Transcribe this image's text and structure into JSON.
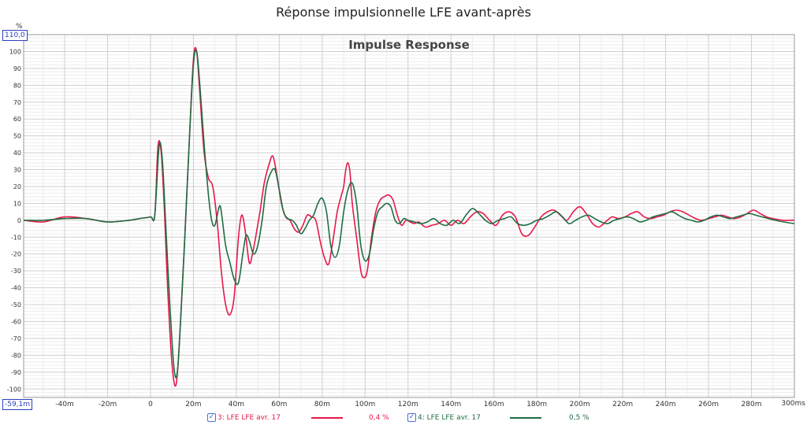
{
  "page_title": "Réponse impulsionnelle LFE avant-après",
  "chart_data": {
    "type": "line",
    "title": "Impulse Response",
    "ylabel": "%",
    "xlabel": "",
    "x_unit": "ms",
    "y_max_box": "110,0",
    "x_min_box": "-59,1m",
    "ylim": [
      -105,
      110
    ],
    "xlim": [
      -59.1,
      300
    ],
    "grid": true,
    "y_ticks": [
      100,
      90,
      80,
      70,
      60,
      50,
      40,
      30,
      20,
      10,
      0,
      -10,
      -20,
      -30,
      -40,
      -50,
      -60,
      -70,
      -80,
      -90,
      -100
    ],
    "x_ticks": [
      {
        "v": -40,
        "label": "-40m"
      },
      {
        "v": -20,
        "label": "-20m"
      },
      {
        "v": 0,
        "label": "0"
      },
      {
        "v": 20,
        "label": "20m"
      },
      {
        "v": 40,
        "label": "40m"
      },
      {
        "v": 60,
        "label": "60m"
      },
      {
        "v": 80,
        "label": "80m"
      },
      {
        "v": 100,
        "label": "100m"
      },
      {
        "v": 120,
        "label": "120m"
      },
      {
        "v": 140,
        "label": "140m"
      },
      {
        "v": 160,
        "label": "160m"
      },
      {
        "v": 180,
        "label": "180m"
      },
      {
        "v": 200,
        "label": "200m"
      },
      {
        "v": 220,
        "label": "220m"
      },
      {
        "v": 240,
        "label": "240m"
      },
      {
        "v": 260,
        "label": "260m"
      },
      {
        "v": 280,
        "label": "280m"
      }
    ],
    "x_end_label": "300ms",
    "series": [
      {
        "name": "3: LFE LFE avr. 17",
        "legend_value": "0,4 %",
        "color": "#e8174a",
        "points": [
          [
            -59,
            0
          ],
          [
            -50,
            -1
          ],
          [
            -40,
            2
          ],
          [
            -30,
            1
          ],
          [
            -20,
            -1
          ],
          [
            -10,
            0
          ],
          [
            -5,
            1
          ],
          [
            0,
            2
          ],
          [
            2,
            3
          ],
          [
            3.5,
            44
          ],
          [
            5,
            40
          ],
          [
            6.5,
            5
          ],
          [
            8,
            -40
          ],
          [
            10,
            -85
          ],
          [
            12,
            -97
          ],
          [
            14,
            -60
          ],
          [
            16,
            -10
          ],
          [
            18,
            45
          ],
          [
            20,
            95
          ],
          [
            21.5,
            100
          ],
          [
            23,
            75
          ],
          [
            25,
            40
          ],
          [
            27,
            25
          ],
          [
            29,
            20
          ],
          [
            31,
            0
          ],
          [
            33,
            -30
          ],
          [
            35,
            -50
          ],
          [
            37,
            -56
          ],
          [
            39,
            -45
          ],
          [
            41,
            -10
          ],
          [
            42.5,
            3
          ],
          [
            44,
            -5
          ],
          [
            46,
            -25
          ],
          [
            47.5,
            -20
          ],
          [
            49,
            -10
          ],
          [
            51,
            5
          ],
          [
            53,
            22
          ],
          [
            55,
            32
          ],
          [
            57,
            38
          ],
          [
            59,
            26
          ],
          [
            61,
            10
          ],
          [
            63,
            2
          ],
          [
            65,
            0
          ],
          [
            67,
            -5
          ],
          [
            69,
            -7
          ],
          [
            71,
            -3
          ],
          [
            73,
            3
          ],
          [
            75,
            2
          ],
          [
            77,
            0
          ],
          [
            79,
            -12
          ],
          [
            81,
            -22
          ],
          [
            83,
            -26
          ],
          [
            85,
            -12
          ],
          [
            87,
            5
          ],
          [
            89,
            15
          ],
          [
            90,
            20
          ],
          [
            91,
            30
          ],
          [
            92,
            34
          ],
          [
            93,
            28
          ],
          [
            94,
            10
          ],
          [
            96,
            -10
          ],
          [
            98,
            -30
          ],
          [
            99.5,
            -34
          ],
          [
            101,
            -30
          ],
          [
            103,
            -10
          ],
          [
            105,
            5
          ],
          [
            107,
            12
          ],
          [
            109,
            14
          ],
          [
            111,
            15
          ],
          [
            113,
            12
          ],
          [
            115,
            3
          ],
          [
            117,
            -3
          ],
          [
            119,
            0
          ],
          [
            121,
            -1
          ],
          [
            123,
            -2
          ],
          [
            125,
            -1
          ],
          [
            128,
            -4
          ],
          [
            131,
            -3
          ],
          [
            134,
            -2
          ],
          [
            137,
            0
          ],
          [
            140,
            -3
          ],
          [
            143,
            0
          ],
          [
            146,
            -2
          ],
          [
            149,
            2
          ],
          [
            152,
            5
          ],
          [
            155,
            4
          ],
          [
            158,
            0
          ],
          [
            161,
            -3
          ],
          [
            164,
            3
          ],
          [
            167,
            5
          ],
          [
            170,
            2
          ],
          [
            173,
            -8
          ],
          [
            176,
            -9
          ],
          [
            179,
            -4
          ],
          [
            182,
            2
          ],
          [
            185,
            5
          ],
          [
            188,
            6
          ],
          [
            191,
            3
          ],
          [
            194,
            0
          ],
          [
            197,
            5
          ],
          [
            200,
            8
          ],
          [
            203,
            4
          ],
          [
            206,
            -2
          ],
          [
            209,
            -4
          ],
          [
            212,
            -1
          ],
          [
            215,
            2
          ],
          [
            218,
            1
          ],
          [
            221,
            2
          ],
          [
            224,
            4
          ],
          [
            227,
            5
          ],
          [
            230,
            2
          ],
          [
            233,
            1
          ],
          [
            236,
            2
          ],
          [
            239,
            3
          ],
          [
            242,
            5
          ],
          [
            245,
            6
          ],
          [
            248,
            5
          ],
          [
            251,
            3
          ],
          [
            254,
            1
          ],
          [
            257,
            0
          ],
          [
            260,
            1
          ],
          [
            263,
            2
          ],
          [
            266,
            3
          ],
          [
            269,
            2
          ],
          [
            272,
            1
          ],
          [
            275,
            2
          ],
          [
            278,
            4
          ],
          [
            281,
            6
          ],
          [
            284,
            4
          ],
          [
            287,
            2
          ],
          [
            290,
            1
          ],
          [
            295,
            0
          ],
          [
            300,
            0
          ]
        ]
      },
      {
        "name": "4: LFE LFE avr. 17",
        "legend_value": "0,5 %",
        "color": "#1f6e44",
        "points": [
          [
            -59,
            0
          ],
          [
            -50,
            0
          ],
          [
            -40,
            1
          ],
          [
            -30,
            1
          ],
          [
            -20,
            -1
          ],
          [
            -10,
            0
          ],
          [
            -5,
            1
          ],
          [
            0,
            2
          ],
          [
            2,
            3
          ],
          [
            4,
            44
          ],
          [
            5.5,
            36
          ],
          [
            7,
            0
          ],
          [
            9,
            -50
          ],
          [
            11,
            -88
          ],
          [
            12.5,
            -90
          ],
          [
            14,
            -60
          ],
          [
            16,
            -10
          ],
          [
            18,
            45
          ],
          [
            20,
            92
          ],
          [
            21.5,
            100
          ],
          [
            23,
            80
          ],
          [
            25,
            45
          ],
          [
            27,
            15
          ],
          [
            28.5,
            0
          ],
          [
            30,
            -3
          ],
          [
            32,
            8
          ],
          [
            33,
            5
          ],
          [
            35,
            -15
          ],
          [
            37,
            -25
          ],
          [
            39,
            -35
          ],
          [
            41,
            -37
          ],
          [
            43,
            -20
          ],
          [
            44.5,
            -9
          ],
          [
            46,
            -12
          ],
          [
            48,
            -20
          ],
          [
            50,
            -15
          ],
          [
            52,
            0
          ],
          [
            54,
            20
          ],
          [
            56,
            28
          ],
          [
            58,
            30
          ],
          [
            60,
            18
          ],
          [
            62,
            5
          ],
          [
            64,
            1
          ],
          [
            66,
            0
          ],
          [
            68,
            -3
          ],
          [
            70,
            -8
          ],
          [
            72,
            -5
          ],
          [
            74,
            0
          ],
          [
            76,
            3
          ],
          [
            78,
            10
          ],
          [
            80,
            13
          ],
          [
            82,
            5
          ],
          [
            84,
            -15
          ],
          [
            86,
            -22
          ],
          [
            88,
            -15
          ],
          [
            90,
            5
          ],
          [
            92,
            18
          ],
          [
            94,
            22
          ],
          [
            96,
            10
          ],
          [
            98,
            -15
          ],
          [
            100,
            -24
          ],
          [
            102,
            -20
          ],
          [
            104,
            -5
          ],
          [
            106,
            5
          ],
          [
            108,
            8
          ],
          [
            110,
            10
          ],
          [
            112,
            8
          ],
          [
            114,
            0
          ],
          [
            116,
            -2
          ],
          [
            118,
            1
          ],
          [
            120,
            0
          ],
          [
            123,
            -1
          ],
          [
            126,
            -2
          ],
          [
            129,
            -1
          ],
          [
            132,
            1
          ],
          [
            135,
            -2
          ],
          [
            138,
            -3
          ],
          [
            141,
            0
          ],
          [
            144,
            -2
          ],
          [
            147,
            3
          ],
          [
            150,
            7
          ],
          [
            153,
            4
          ],
          [
            156,
            0
          ],
          [
            159,
            -2
          ],
          [
            162,
            0
          ],
          [
            165,
            1
          ],
          [
            168,
            2
          ],
          [
            171,
            -2
          ],
          [
            174,
            -3
          ],
          [
            177,
            -2
          ],
          [
            180,
            0
          ],
          [
            183,
            1
          ],
          [
            186,
            3
          ],
          [
            189,
            5
          ],
          [
            192,
            2
          ],
          [
            195,
            -2
          ],
          [
            198,
            0
          ],
          [
            201,
            2
          ],
          [
            204,
            3
          ],
          [
            207,
            1
          ],
          [
            210,
            -1
          ],
          [
            213,
            -2
          ],
          [
            216,
            0
          ],
          [
            219,
            1
          ],
          [
            222,
            2
          ],
          [
            225,
            1
          ],
          [
            228,
            -1
          ],
          [
            231,
            0
          ],
          [
            234,
            2
          ],
          [
            237,
            3
          ],
          [
            240,
            4
          ],
          [
            243,
            5
          ],
          [
            246,
            3
          ],
          [
            249,
            1
          ],
          [
            252,
            0
          ],
          [
            255,
            -1
          ],
          [
            258,
            0
          ],
          [
            261,
            2
          ],
          [
            264,
            3
          ],
          [
            267,
            2
          ],
          [
            270,
            1
          ],
          [
            273,
            2
          ],
          [
            276,
            3
          ],
          [
            279,
            4
          ],
          [
            282,
            3
          ],
          [
            285,
            2
          ],
          [
            288,
            1
          ],
          [
            291,
            0
          ],
          [
            295,
            -1
          ],
          [
            300,
            -2
          ]
        ]
      }
    ]
  }
}
